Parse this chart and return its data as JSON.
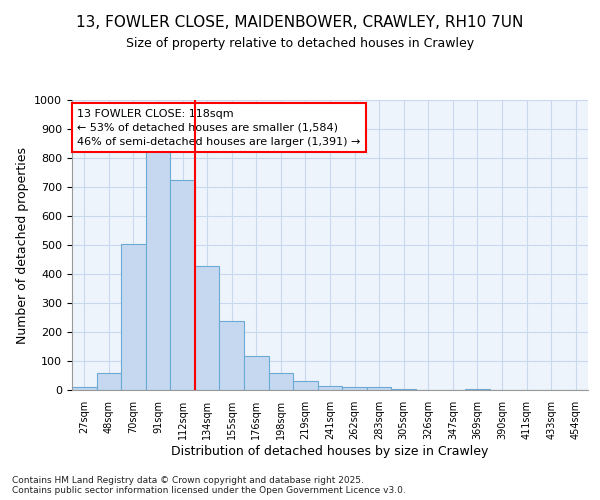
{
  "title_line1": "13, FOWLER CLOSE, MAIDENBOWER, CRAWLEY, RH10 7UN",
  "title_line2": "Size of property relative to detached houses in Crawley",
  "xlabel": "Distribution of detached houses by size in Crawley",
  "ylabel": "Number of detached properties",
  "categories": [
    "27sqm",
    "48sqm",
    "70sqm",
    "91sqm",
    "112sqm",
    "134sqm",
    "155sqm",
    "176sqm",
    "198sqm",
    "219sqm",
    "241sqm",
    "262sqm",
    "283sqm",
    "305sqm",
    "326sqm",
    "347sqm",
    "369sqm",
    "390sqm",
    "411sqm",
    "433sqm",
    "454sqm"
  ],
  "values": [
    10,
    57,
    505,
    827,
    725,
    428,
    238,
    116,
    57,
    30,
    14,
    10,
    12,
    5,
    0,
    0,
    5,
    0,
    0,
    0,
    0
  ],
  "bar_color": "#c5d8f0",
  "bar_edge_color": "#6aaad4",
  "vline_color": "red",
  "annotation_text": "13 FOWLER CLOSE: 118sqm\n← 53% of detached houses are smaller (1,584)\n46% of semi-detached houses are larger (1,391) →",
  "annotation_box_color": "white",
  "annotation_box_edge_color": "red",
  "ylim": [
    0,
    1000
  ],
  "yticks": [
    0,
    100,
    200,
    300,
    400,
    500,
    600,
    700,
    800,
    900,
    1000
  ],
  "footer_line1": "Contains HM Land Registry data © Crown copyright and database right 2025.",
  "footer_line2": "Contains public sector information licensed under the Open Government Licence v3.0.",
  "grid_color": "#c8d8ee",
  "background_color": "#ffffff",
  "plot_bg_color": "#eef4fc"
}
